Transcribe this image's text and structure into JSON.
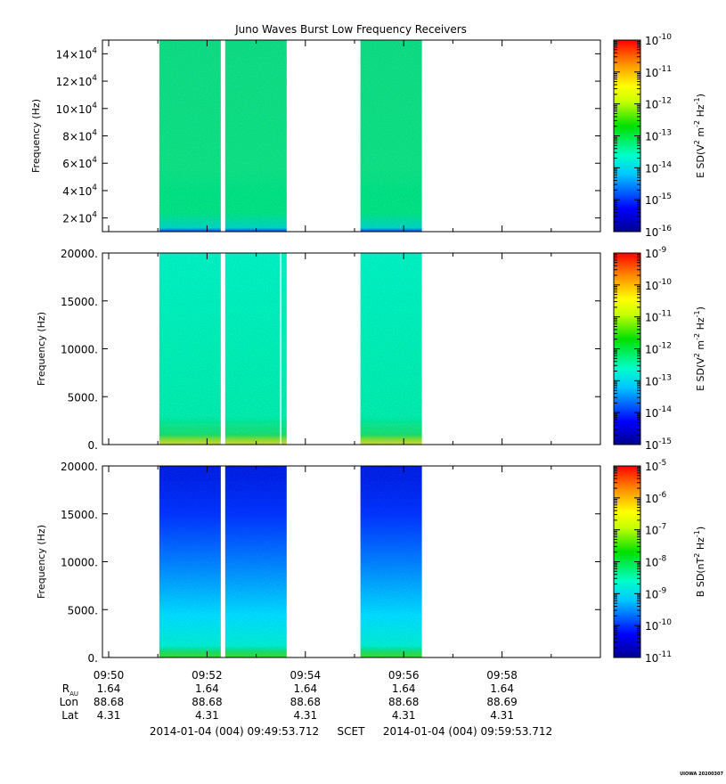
{
  "title": "Juno Waves Burst Low Frequency Receivers",
  "footer_stamp": "UIOWA 20200307",
  "time_axis": {
    "tick_labels": [
      "09:50",
      "09:52",
      "09:54",
      "09:56",
      "09:58"
    ],
    "tick_minutes": [
      0,
      2,
      4,
      6,
      8
    ],
    "range_minutes": [
      0,
      10
    ],
    "start_label": "2014-01-04 (004) 09:49:53.712",
    "scet_label": "SCET",
    "end_label": "2014-01-04 (004) 09:59:53.712"
  },
  "ephemeris": {
    "rows": [
      {
        "label": "R",
        "sub": "AU",
        "values": [
          "1.64",
          "1.64",
          "1.64",
          "1.64",
          "1.64"
        ]
      },
      {
        "label": "Lon",
        "sub": "",
        "values": [
          "88.68",
          "88.68",
          "88.68",
          "88.68",
          "88.69"
        ]
      },
      {
        "label": "Lat",
        "sub": "",
        "values": [
          "4.31",
          "4.31",
          "4.31",
          "4.31",
          "4.31"
        ]
      }
    ]
  },
  "chart_data": [
    {
      "type": "heatmap",
      "ylabel": "Frequency (Hz)",
      "ylim": [
        10000,
        150000
      ],
      "y_ticks": [
        20000,
        40000,
        60000,
        80000,
        100000,
        120000,
        140000
      ],
      "y_tick_mantissa": [
        "2",
        "4",
        "6",
        "8",
        "10",
        "12",
        "14"
      ],
      "y_tick_exp": "4",
      "colorbar_label": "E SD",
      "colorbar_unit_base": "(V",
      "colorbar_unit_mid": " m",
      "colorbar_unit_end": " Hz",
      "colorbar_unit_close": ")",
      "cb_unit_exps": [
        "2",
        "-2",
        "-1"
      ],
      "colorbar_exps": [
        "-10",
        "-11",
        "-12",
        "-13",
        "-14",
        "-15",
        "-16"
      ],
      "data_intervals_minutes": [
        [
          1.03,
          2.28
        ],
        [
          2.37,
          3.62
        ],
        [
          5.12,
          6.37
        ]
      ],
      "level": "~1e-13 broadband (green), lower near bottom edge (blue)"
    },
    {
      "type": "heatmap",
      "ylabel": "Frequency (Hz)",
      "ylim": [
        0,
        20000
      ],
      "y_ticks": [
        0,
        5000,
        10000,
        15000,
        20000
      ],
      "y_tick_labels": [
        "0.",
        "5000.",
        "10000.",
        "15000.",
        "20000."
      ],
      "colorbar_label": "E SD",
      "colorbar_unit_base": "(V",
      "colorbar_unit_mid": " m",
      "colorbar_unit_end": " Hz",
      "colorbar_unit_close": ")",
      "cb_unit_exps": [
        "2",
        "-2",
        "-1"
      ],
      "colorbar_exps": [
        "-9",
        "-10",
        "-11",
        "-12",
        "-13",
        "-14",
        "-15"
      ],
      "data_intervals_minutes": [
        [
          1.03,
          2.28
        ],
        [
          2.37,
          3.62
        ],
        [
          5.12,
          6.37
        ]
      ],
      "level": "~1e-13 above 1 kHz, rising to ~1e-11 below 1 kHz"
    },
    {
      "type": "heatmap",
      "ylabel": "Frequency (Hz)",
      "ylim": [
        0,
        20000
      ],
      "y_ticks": [
        0,
        5000,
        10000,
        15000,
        20000
      ],
      "y_tick_labels": [
        "0.",
        "5000.",
        "10000.",
        "15000.",
        "20000."
      ],
      "colorbar_label": "B SD",
      "colorbar_unit_base": "(nT",
      "colorbar_unit_mid": "",
      "colorbar_unit_end": " Hz",
      "colorbar_unit_close": ")",
      "cb_unit_exps": [
        "2",
        "",
        "-1"
      ],
      "colorbar_exps": [
        "-5",
        "-6",
        "-7",
        "-8",
        "-9",
        "-10",
        "-11"
      ],
      "data_intervals_minutes": [
        [
          1.03,
          2.28
        ],
        [
          2.37,
          3.62
        ],
        [
          5.12,
          6.37
        ]
      ],
      "level": "~1e-10 at high frequency, ~1e-9 mid, ~1e-8 below 1 kHz"
    }
  ]
}
